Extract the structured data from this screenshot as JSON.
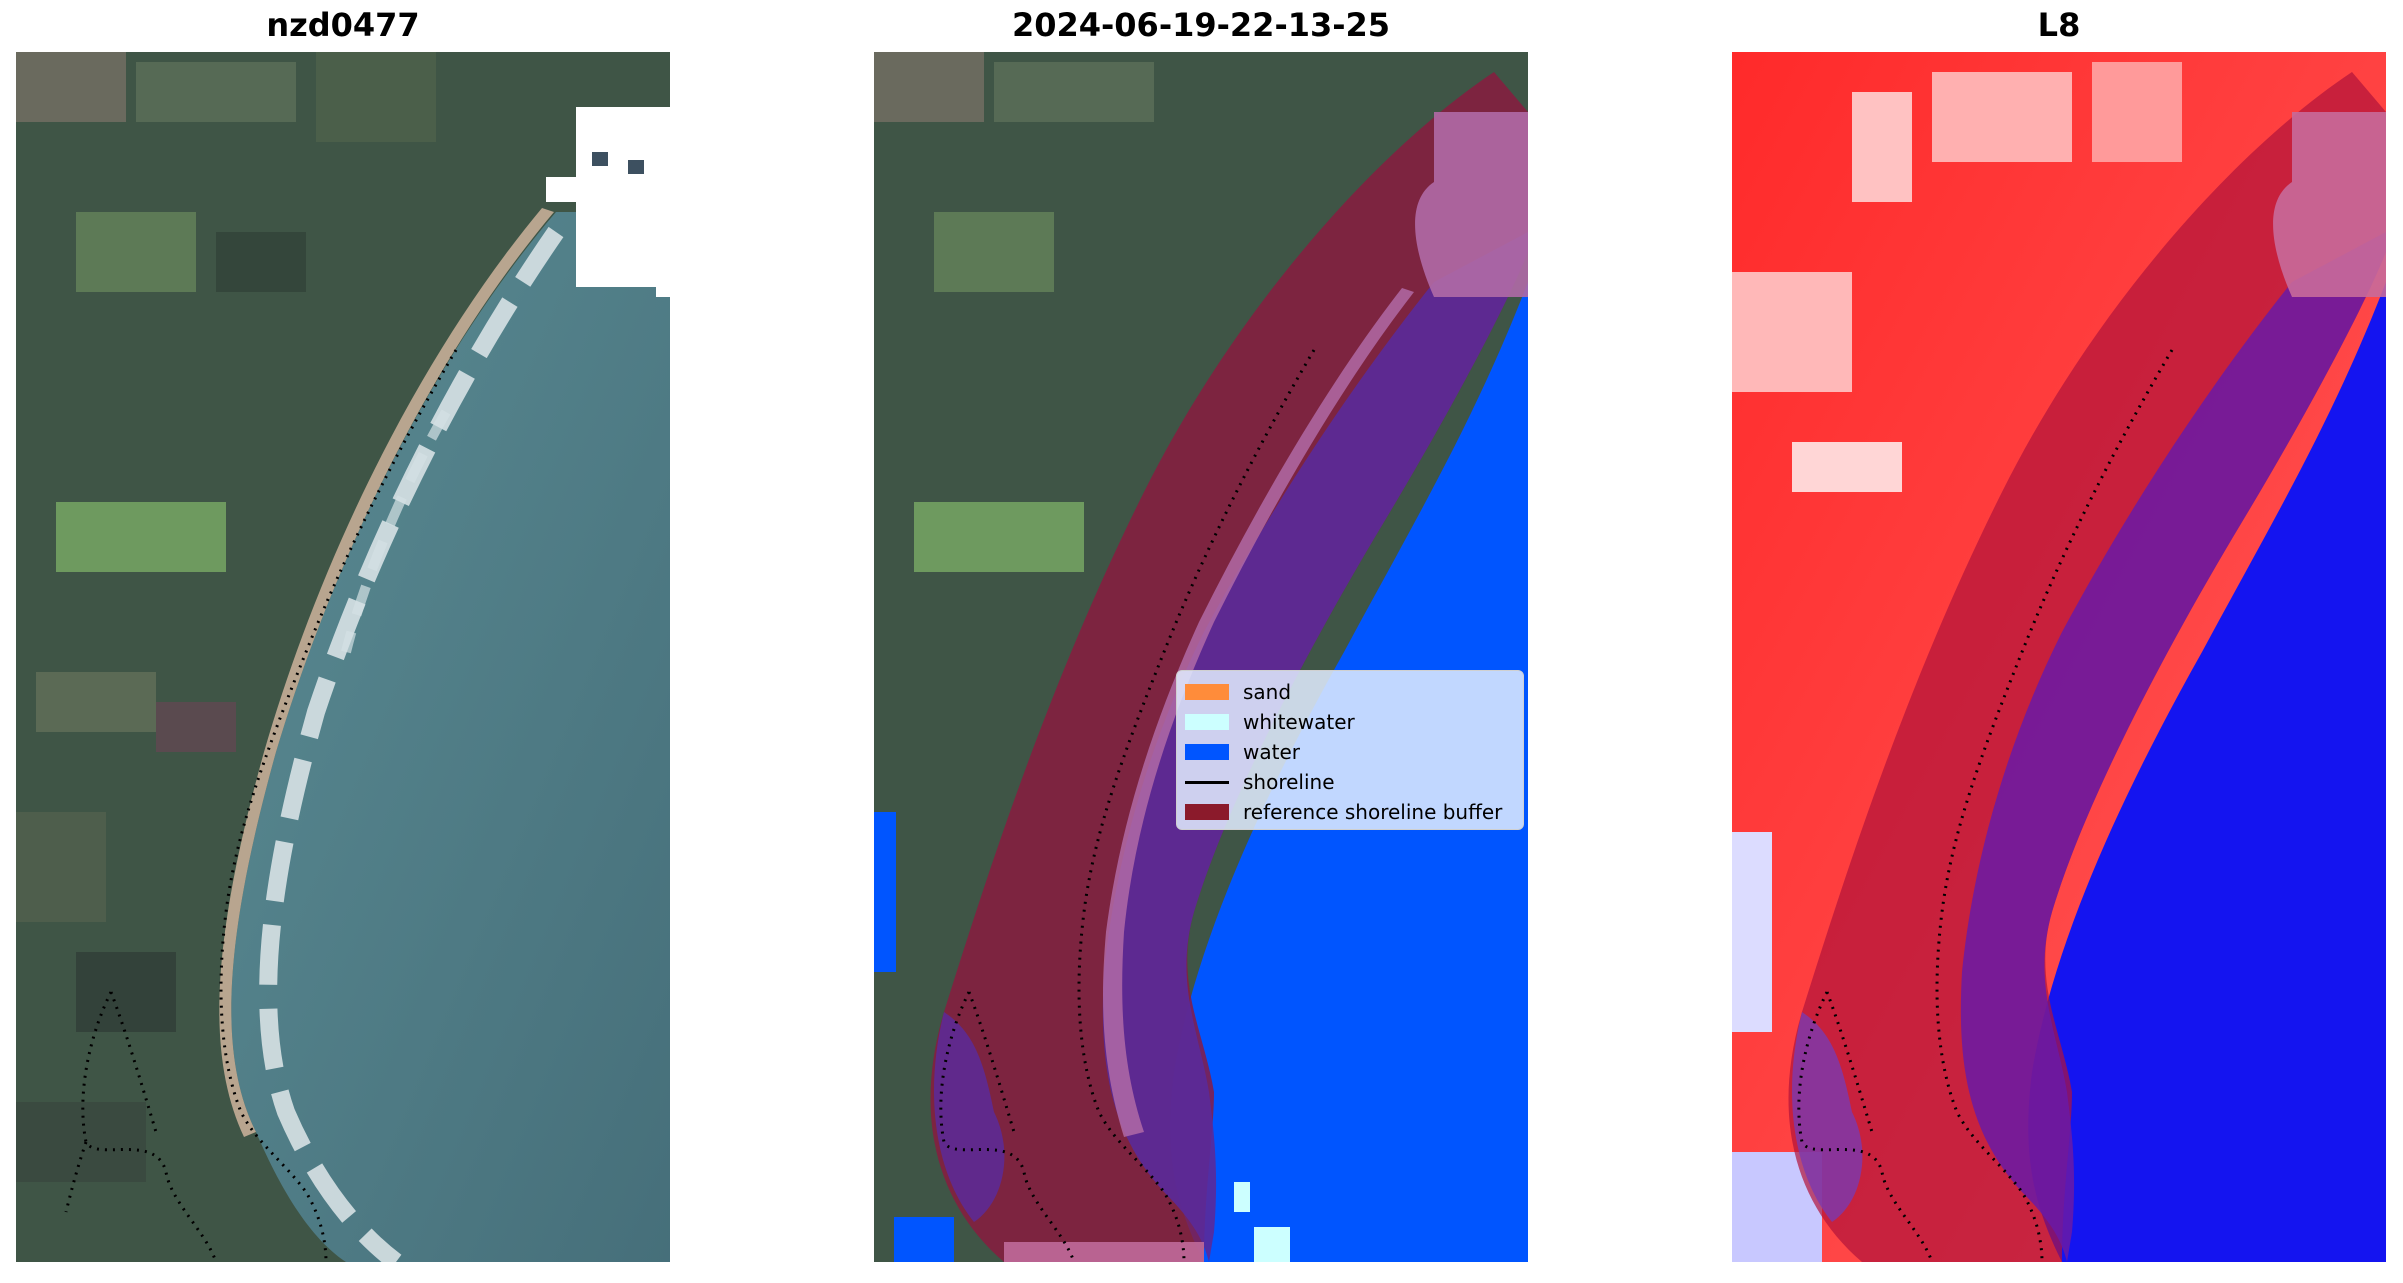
{
  "panels": [
    {
      "title": "nzd0477",
      "content": "RGB satellite image with detected shoreline (dotted)"
    },
    {
      "title": "2024-06-19-22-13-25",
      "content": "Classified image with reference shoreline buffer overlay"
    },
    {
      "title": "L8",
      "content": "Water index image with reference shoreline buffer overlay"
    }
  ],
  "legend": {
    "items": [
      {
        "label": "sand",
        "kind": "patch",
        "color": "#ff8c3a"
      },
      {
        "label": "whitewater",
        "kind": "patch",
        "color": "#ccffff"
      },
      {
        "label": "water",
        "kind": "patch",
        "color": "#0055ff"
      },
      {
        "label": "shoreline",
        "kind": "line",
        "color": "#000000"
      },
      {
        "label": "reference shoreline buffer",
        "kind": "patch",
        "color": "#8b1a2b"
      }
    ]
  },
  "colors": {
    "land": "#3f5546",
    "sea": "#4e7a82",
    "water_class": "#0055ff",
    "buffer": "#8b1a3f",
    "index_land": "#ff1a1a",
    "index_water": "#0000ff"
  }
}
